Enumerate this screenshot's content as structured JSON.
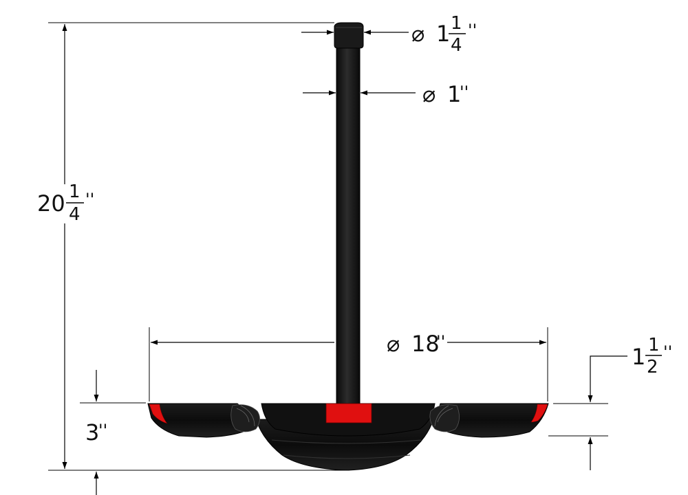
{
  "dimensions": {
    "cap_diameter": {
      "symbol": "⌀",
      "whole": "1",
      "numerator": "1",
      "denominator": "4",
      "unit": "''"
    },
    "pole_diameter": {
      "symbol": "⌀",
      "whole": "1",
      "unit": "''"
    },
    "total_height": {
      "whole": "20",
      "numerator": "1",
      "denominator": "4",
      "unit": "''"
    },
    "base_diameter": {
      "symbol": "⌀",
      "whole": "18",
      "unit": "''"
    },
    "base_rim_height": {
      "whole": "1",
      "numerator": "1",
      "denominator": "2",
      "unit": "''"
    },
    "base_height": {
      "whole": "3",
      "unit": "''"
    }
  },
  "colors": {
    "body": "#141414",
    "accent": "#e01010",
    "line": "#000000"
  }
}
